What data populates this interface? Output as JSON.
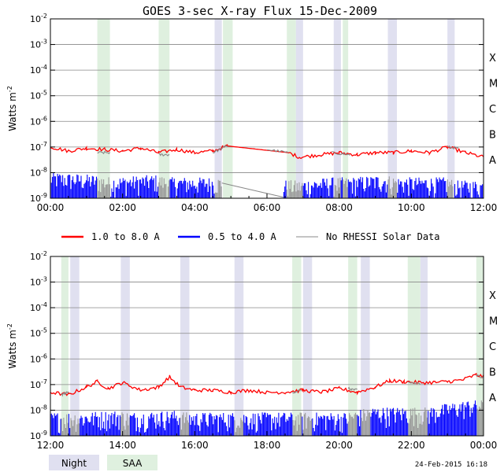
{
  "chart_data": {
    "type": "line",
    "title": "GOES 3-sec X-ray Flux   15-Dec-2009",
    "ylabel": "Watts m",
    "ylabel_sup": "-2",
    "yscale": "log",
    "ylim": [
      1e-09,
      0.01
    ],
    "y_tick_base": "10",
    "y_tick_exponents": [
      "-9",
      "-8",
      "-7",
      "-6",
      "-5",
      "-4",
      "-3",
      "-2"
    ],
    "flare_classes": [
      {
        "label": "X",
        "level": 0.0001
      },
      {
        "label": "M",
        "level": 1e-05
      },
      {
        "label": "C",
        "level": 1e-06
      },
      {
        "label": "B",
        "level": 1e-07
      },
      {
        "label": "A",
        "level": 1e-08
      }
    ],
    "legend": [
      {
        "name": "1.0 to 8.0 A",
        "color": "#ff0000"
      },
      {
        "name": "0.5 to 4.0 A",
        "color": "#0000ff"
      },
      {
        "name": "No RHESSI Solar Data",
        "color": "#888888"
      }
    ],
    "bands_legend": [
      {
        "name": "Night",
        "color": "#e0e0f0"
      },
      {
        "name": "SAA",
        "color": "#dff0df"
      }
    ],
    "timestamp": "24-Feb-2015 16:18",
    "panels": [
      {
        "xlim": [
          0,
          12
        ],
        "x_tick_labels": [
          "00:00",
          "02:00",
          "04:00",
          "06:00",
          "08:00",
          "10:00",
          "12:00"
        ],
        "night": [
          [
            4.55,
            4.75
          ],
          [
            6.8,
            7.0
          ],
          [
            7.85,
            8.05
          ],
          [
            9.35,
            9.6
          ],
          [
            11.0,
            11.2
          ]
        ],
        "saa": [
          [
            1.3,
            1.65
          ],
          [
            3.0,
            3.3
          ],
          [
            4.78,
            5.05
          ],
          [
            6.55,
            6.8
          ],
          [
            8.1,
            8.25
          ]
        ],
        "series": [
          {
            "name": "1.0 to 8.0 A",
            "color": "#ff0000",
            "x": [
              0,
              0.5,
              1,
              1.5,
              2,
              2.5,
              3,
              3.5,
              4,
              4.5,
              4.9,
              6.6,
              6.9,
              7.5,
              8,
              8.5,
              9,
              9.5,
              10,
              10.5,
              11,
              11.5,
              12
            ],
            "y": [
              1e-07,
              7e-08,
              9e-08,
              8e-08,
              7e-08,
              9e-08,
              6e-08,
              8e-08,
              6e-08,
              7e-08,
              1.1e-07,
              6e-08,
              4e-08,
              5e-08,
              6e-08,
              5e-08,
              6e-08,
              6e-08,
              7e-08,
              6e-08,
              1e-07,
              6e-08,
              4e-08
            ]
          },
          {
            "name": "No RHESSI Solar Data",
            "color": "#888888",
            "x": [
              1.3,
              1.65,
              3.0,
              3.3,
              4.5,
              4.9,
              6.0,
              6.6,
              7.8,
              8.3,
              11.0,
              11.3
            ],
            "y": [
              6e-08,
              6e-08,
              5e-08,
              5e-08,
              6e-08,
              1.1e-07,
              8e-08,
              6e-08,
              6e-08,
              5e-08,
              1e-07,
              9e-08
            ]
          }
        ],
        "soft": {
          "name": "0.5 to 4.0 A",
          "color": "#0000ff",
          "x": [
            0.2,
            1.2,
            1.7,
            2.9,
            3.3,
            4.4,
            6.9,
            7.8,
            8.3,
            9.3,
            9.6,
            11.0,
            11.2,
            12.0
          ],
          "y": [
            6e-09,
            5e-09,
            4e-09,
            5e-09,
            4e-09,
            4e-09,
            3e-09,
            4e-09,
            4e-09,
            5e-09,
            4e-09,
            4e-09,
            3e-09,
            3e-09
          ],
          "gaps": [
            [
              4.75,
              6.45
            ]
          ]
        }
      },
      {
        "xlim": [
          12,
          24
        ],
        "x_tick_labels": [
          "12:00",
          "14:00",
          "16:00",
          "18:00",
          "20:00",
          "22:00",
          "00:00"
        ],
        "night": [
          [
            12.55,
            12.8
          ],
          [
            13.95,
            14.2
          ],
          [
            15.6,
            15.85
          ],
          [
            17.1,
            17.35
          ],
          [
            19.0,
            19.25
          ],
          [
            20.6,
            20.85
          ],
          [
            22.25,
            22.45
          ]
        ],
        "saa": [
          [
            12.3,
            12.5
          ],
          [
            18.7,
            18.95
          ],
          [
            20.25,
            20.5
          ],
          [
            21.9,
            22.25
          ],
          [
            23.8,
            24.0
          ]
        ],
        "series": [
          {
            "name": "1.0 to 8.0 A",
            "color": "#ff0000",
            "x": [
              12,
              12.5,
              13,
              13.3,
              13.6,
              14,
              14.5,
              15,
              15.3,
              15.6,
              16,
              16.5,
              17,
              17.5,
              18,
              18.5,
              19,
              19.5,
              20,
              20.5,
              21,
              21.4,
              21.8,
              22.2,
              22.6,
              23,
              23.4,
              23.8,
              24
            ],
            "y": [
              5e-08,
              4e-08,
              8e-08,
              1.3e-07,
              7e-08,
              1.2e-07,
              6e-08,
              8e-08,
              2e-07,
              8e-08,
              6e-08,
              6e-08,
              5e-08,
              6e-08,
              5e-08,
              5e-08,
              6e-08,
              5e-08,
              7e-08,
              5e-08,
              8e-08,
              1.4e-07,
              1.3e-07,
              1.2e-07,
              1.2e-07,
              1.3e-07,
              1.5e-07,
              2.4e-07,
              2e-07
            ]
          },
          {
            "name": "No RHESSI Solar Data",
            "color": "#888888",
            "x": [
              12.3,
              12.5,
              18.7,
              18.95,
              20.25,
              20.5,
              21.9,
              22.25,
              23.8,
              24.0
            ],
            "y": [
              4e-08,
              5e-08,
              5e-08,
              6e-08,
              7e-08,
              6e-08,
              1.2e-07,
              1.1e-07,
              2.2e-07,
              2e-07
            ]
          }
        ],
        "soft": {
          "name": "0.5 to 4.0 A",
          "color": "#0000ff",
          "x": [
            12.0,
            12.5,
            12.8,
            13.9,
            14.2,
            15.5,
            15.8,
            17.0,
            17.4,
            18.7,
            19.2,
            20.2,
            20.9,
            21.8,
            22.5,
            23.6
          ],
          "y": [
            5e-09,
            5e-09,
            5e-09,
            6e-09,
            5e-09,
            6e-09,
            5e-09,
            5e-09,
            5e-09,
            5e-09,
            5e-09,
            5e-09,
            8e-09,
            8e-09,
            8e-09,
            1.5e-08
          ],
          "gaps": []
        }
      }
    ]
  }
}
